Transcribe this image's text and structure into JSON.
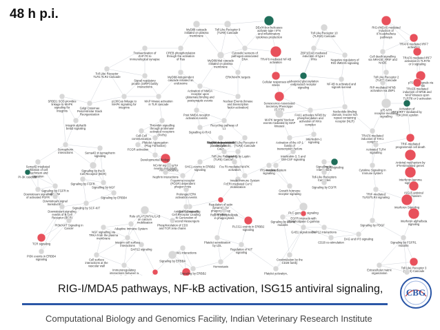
{
  "title": "48 h p.i.",
  "caption": "RIG-I/MDA5 pathways, NF-kB activation, ISG15 antiviral signaling,",
  "footer": "Computational Biology and Genomics Facility, Indian Veterinary Research Institute",
  "logo_text": "CBG",
  "colors": {
    "up": "#e8515c",
    "down": "#1f6e5a",
    "neutral": "#d8d8d8",
    "accent_text": "#d9343c",
    "rule": "#2a56a6"
  },
  "nodes": [
    {
      "label": "MyD88 cascade initiated on plasma membrane",
      "color": "#d8d8d8",
      "tc": "#333"
    },
    {
      "label": "Toll Like Receptor 9 (TLR9) Cascade",
      "color": "#d8d8d8",
      "tc": "#333"
    },
    {
      "label": "DEx/H-box helicases activate type I IFN and inflammatory cytokines production",
      "color": "#1f6e5a",
      "tc": "#333"
    },
    {
      "label": "Toll Like Receptor 10 (TLR10) Cascade",
      "color": "#d8d8d8",
      "tc": "#333"
    },
    {
      "label": "RIG-I/MDA5 mediated induction of IFN-alpha/beta pathways",
      "color": "#e8515c",
      "tc": "#d9343c"
    },
    {
      "label": "TRAF6 mediated IRF7 activation",
      "color": "#e8515c",
      "tc": "#d9343c"
    },
    {
      "label": "Transactivation of ZAP-70 to immunological synapse",
      "color": "#d8d8d8",
      "tc": "#333"
    },
    {
      "label": "CREB phosphorylation through the activation of Ras",
      "color": "#d8d8d8",
      "tc": "#333"
    },
    {
      "label": "MyD88:Mal cascade initiated on plasma membrane",
      "color": "#d8d8d8",
      "tc": "#333"
    },
    {
      "label": "Cytosolic sensors of pathogen-associated DNA",
      "color": "#d8d8d8",
      "tc": "#333"
    },
    {
      "label": "TRAF6 mediated NF-kB activation",
      "color": "#e8515c",
      "tc": "#333"
    },
    {
      "label": "ZBP1(DAI) mediated induction of type I IFNs",
      "color": "#d8d8d8",
      "tc": "#333"
    },
    {
      "label": "Negative regulators of RIG-I/MDA5 signaling",
      "color": "#d8d8d8",
      "tc": "#333"
    },
    {
      "label": "Cell death signalling via NRAGE, NRIF and NADE",
      "color": "#d8d8d8",
      "tc": "#333"
    },
    {
      "label": "TRAF6 mediated IRF7 activation in TLR7/8 or 9 signaling",
      "color": "#e8515c",
      "tc": "#d9343c"
    },
    {
      "label": "Toll Like Receptor 2 (TLR2) Cascade",
      "color": "#d8d8d8",
      "tc": "#333"
    },
    {
      "label": "p75NTR signals via NF-kB",
      "color": "#e8515c",
      "tc": "#d9343c"
    },
    {
      "label": "Toll Like Receptor TLR1:TLR2 Cascade",
      "color": "#d8d8d8",
      "tc": "#333"
    },
    {
      "label": "Signal regulatory protein (SIRP) family interactions",
      "color": "#d8d8d8",
      "tc": "#333"
    },
    {
      "label": "MyD88-independent cascade initiated on endosome",
      "color": "#d8d8d8",
      "tc": "#333"
    },
    {
      "label": "ERK/MAPK targets",
      "color": "#d8d8d8",
      "tc": "#333"
    },
    {
      "label": "Cellular responses to stress",
      "color": "#e8515c",
      "tc": "#333"
    },
    {
      "label": "Advanced glycosylation endproduct receptor signaling",
      "color": "#1f6e5a",
      "tc": "#333"
    },
    {
      "label": "NF-kB is activated and signals survival",
      "color": "#d8d8d8",
      "tc": "#333"
    },
    {
      "label": "RIP-mediated NFkB activation via ZBP1",
      "color": "#d8d8d8",
      "tc": "#333"
    },
    {
      "label": "TRAF6 mediated induction of NFkB and MAP kinases upon TLR7/8 or 9 activation",
      "color": "#e8515c",
      "tc": "#d9343c"
    },
    {
      "label": "SRBD1 SOS provides linkage to MAPK signaling for Integrins",
      "color": "#d8d8d8",
      "tc": "#333"
    },
    {
      "label": "Golgi Cisternae Pericentriolar Stack Reorganization",
      "color": "#d8d8d8",
      "tc": "#333"
    },
    {
      "label": "p130Cas linkage to MAPK signaling for integrins",
      "color": "#d8d8d8",
      "tc": "#333"
    },
    {
      "label": "MAP kinase activation in TLR cascade",
      "color": "#d8d8d8",
      "tc": "#333"
    },
    {
      "label": "Activation of NMDA receptor upon glutamate binding and postsynaptic events",
      "color": "#d8d8d8",
      "tc": "#333"
    },
    {
      "label": "Post NMDA receptor activation events",
      "color": "#d8d8d8",
      "tc": "#333"
    },
    {
      "label": "Nuclear Events (kinase and transcription factor activation)",
      "color": "#d8d8d8",
      "tc": "#333"
    },
    {
      "label": "Senescence-Associated Secretory Phenotype (SASP)",
      "color": "#e8515c",
      "tc": "#333"
    },
    {
      "label": "FAK1 activates NFkB by phosphorylation and activation of IKKs complex",
      "color": "#d8d8d8",
      "tc": "#333"
    },
    {
      "label": "Nucleotide-binding domain, leucine rich repeat containing receptor (NLR) signaling pathways",
      "color": "#d8d8d8",
      "tc": "#333"
    },
    {
      "label": "p75 NTR receptor-mediated signalling",
      "color": "#d8d8d8",
      "tc": "#333"
    },
    {
      "label": "Activation of IRF3/IRF7 mediated by TBK1/IKK epsilon",
      "color": "#1f6e5a",
      "tc": "#333"
    },
    {
      "label": "TRAF6 mediated induction of TAK1 complex",
      "color": "#d8d8d8",
      "tc": "#333"
    },
    {
      "label": "Integrin alphaIIb beta3 signaling",
      "color": "#d8d8d8",
      "tc": "#333"
    },
    {
      "label": "Thrombin signalling through proteinase activated receptors (PARs)",
      "color": "#d8d8d8",
      "tc": "#333"
    },
    {
      "label": "Signalling to RAS",
      "color": "#d8d8d8",
      "tc": "#333"
    },
    {
      "label": "Recycling pathway of L1",
      "color": "#d8d8d8",
      "tc": "#333"
    },
    {
      "label": "MAPK targets/ Nuclear events mediated by MAP kinases",
      "color": "#d8d8d8",
      "tc": "#333"
    },
    {
      "label": "Toll Like Receptor 4 (TLR4) Cascade",
      "color": "#d8d8d8",
      "tc": "#333"
    },
    {
      "label": "Activation of the AP-1 family of transcription factors",
      "color": "#d8d8d8",
      "tc": "#333"
    },
    {
      "label": "Interleukin-1 signaling",
      "color": "#d8d8d8",
      "tc": "#333"
    },
    {
      "label": "Activated TLR4 signalling",
      "color": "#d8d8d8",
      "tc": "#333"
    },
    {
      "label": "TRIF-mediated programmed cell death",
      "color": "#e8515c",
      "tc": "#d9343c"
    },
    {
      "label": "Cell-Cell communication",
      "color": "#d8d8d8",
      "tc": "#333"
    },
    {
      "label": "Platelet Aggregation (Plug Formation)",
      "color": "#d8d8d8",
      "tc": "#333"
    },
    {
      "label": "NCAM signaling for neurite out-growth",
      "color": "#e8515c",
      "tc": "#333"
    },
    {
      "label": "Toll Like Receptor 5 (TLR5) Cascade",
      "color": "#d8d8d8",
      "tc": "#333"
    },
    {
      "label": "Fcε RI-mediated MAPK activation",
      "color": "#d8d8d8",
      "tc": "#333"
    },
    {
      "label": "Interleukin-3, 5 and GM-CSF signaling",
      "color": "#d8d8d8",
      "tc": "#333"
    },
    {
      "label": "IRS-mediated signalling",
      "color": "#d8d8d8",
      "tc": "#333"
    },
    {
      "label": "Signalling by Interleukins",
      "color": "#d8d8d8",
      "tc": "#333"
    },
    {
      "label": "TCR signaling",
      "color": "#1f6e5a",
      "tc": "#333"
    },
    {
      "label": "Cytokine Signaling in Immune system",
      "color": "#d8d8d8",
      "tc": "#333"
    },
    {
      "label": "Antiviral mechanism by IFN-stimulated genes",
      "color": "#e8515c",
      "tc": "#d9343c"
    },
    {
      "label": "Interferon gamma signaling",
      "color": "#e8515c",
      "tc": "#d9343c"
    },
    {
      "label": "ISG15 antiviral mechanism",
      "color": "#e8515c",
      "tc": "#d9343c"
    },
    {
      "label": "Interferon Signaling",
      "color": "#e8515c",
      "tc": "#d9343c"
    },
    {
      "label": "Interferon alpha/beta signaling",
      "color": "#e8515c",
      "tc": "#d9343c"
    },
    {
      "label": "Semaphorin interactions",
      "color": "#d8d8d8",
      "tc": "#333"
    },
    {
      "label": "Sema4D in semaphorin signaling",
      "color": "#d8d8d8",
      "tc": "#333"
    },
    {
      "label": "Sema4D mediated inhibition of cell attachment and migration",
      "color": "#d8d8d8",
      "tc": "#333"
    },
    {
      "label": "FCGR activation",
      "color": "#d8d8d8",
      "tc": "#333"
    },
    {
      "label": "Developmental Biology",
      "color": "#d8d8d8",
      "tc": "#333"
    },
    {
      "label": "Axon guidance",
      "color": "#d8d8d8",
      "tc": "#333"
    },
    {
      "label": "SHC1 events in ERBB2 signaling",
      "color": "#d8d8d8",
      "tc": "#333"
    },
    {
      "label": "Signaling by Leptin",
      "color": "#d8d8d8",
      "tc": "#333"
    },
    {
      "label": "Immune System",
      "color": "#d8d8d8",
      "tc": "#333"
    },
    {
      "label": "Toll-Like Receptors Cascades",
      "color": "#d8d8d8",
      "tc": "#333"
    },
    {
      "label": "PI-3K cascade",
      "color": "#1f6e5a",
      "tc": "#333"
    },
    {
      "label": "Signaling by the B Cell Receptor (BCR)",
      "color": "#d8d8d8",
      "tc": "#333"
    },
    {
      "label": "Signaling by FGFR",
      "color": "#d8d8d8",
      "tc": "#333"
    },
    {
      "label": "Signalling by NGF",
      "color": "#d8d8d8",
      "tc": "#333"
    },
    {
      "label": "FcERI mediated Ca+2 mobilization",
      "color": "#d8d8d8",
      "tc": "#333"
    },
    {
      "label": "Signaling by ERBB4",
      "color": "#d8d8d8",
      "tc": "#333"
    },
    {
      "label": "Nephrin interactions",
      "color": "#d8d8d8",
      "tc": "#333"
    },
    {
      "label": "Fcgamma receptor (FCGR) dependent phagocytosis",
      "color": "#d8d8d8",
      "tc": "#333"
    },
    {
      "label": "Innate Immune System",
      "color": "#d8d8d8",
      "tc": "#333"
    },
    {
      "label": "Growth hormone receptor signaling",
      "color": "#d8d8d8",
      "tc": "#333"
    },
    {
      "label": "Signaling by EGFR",
      "color": "#d8d8d8",
      "tc": "#333"
    },
    {
      "label": "TRIF-mediated TLR3/TLR4 signaling",
      "color": "#d8d8d8",
      "tc": "#333"
    },
    {
      "label": "Downstream signaling of activated FGFR",
      "color": "#d8d8d8",
      "tc": "#333"
    },
    {
      "label": "Signaling by SCF-KIT",
      "color": "#d8d8d8",
      "tc": "#333"
    },
    {
      "label": "Prolonged ERK activation events",
      "color": "#d8d8d8",
      "tc": "#333"
    },
    {
      "label": "Regulation of actin dynamics for phagocytic cup formation",
      "color": "#e8515c",
      "tc": "#333"
    },
    {
      "label": "DAP12 signaling",
      "color": "#d8d8d8",
      "tc": "#333"
    },
    {
      "label": "PLC-gamma1 signaling",
      "color": "#d8d8d8",
      "tc": "#333"
    },
    {
      "label": "Signaling by FGFR in disease",
      "color": "#d8d8d8",
      "tc": "#333"
    },
    {
      "label": "Downstream signal transduction",
      "color": "#d8d8d8",
      "tc": "#333"
    },
    {
      "label": "Antigen Activates B Cell Receptor Leading to Generation of Second Messengers",
      "color": "#d8d8d8",
      "tc": "#333"
    },
    {
      "label": "Role of phospholipids in phagocytosis",
      "color": "#d8d8d8",
      "tc": "#333"
    },
    {
      "label": "EGFR interacts with phospholipase C-gamma",
      "color": "#e8515c",
      "tc": "#333"
    },
    {
      "label": "Role of LAT2/NTAL/LAB on calcium mobilization",
      "color": "#d8d8d8",
      "tc": "#333"
    },
    {
      "label": "Downstream signaling events of B Cell Receptor (BCR)",
      "color": "#d8d8d8",
      "tc": "#333"
    },
    {
      "label": "PLCG1 events in ERBB2 signaling",
      "color": "#e8515c",
      "tc": "#333"
    },
    {
      "label": "Signaling by FGFR mutants",
      "color": "#d8d8d8",
      "tc": "#333"
    },
    {
      "label": "Signaling by PDGF",
      "color": "#d8d8d8",
      "tc": "#333"
    },
    {
      "label": "PI3K/AKT Signaling in Cancer",
      "color": "#d8d8d8",
      "tc": "#333"
    },
    {
      "label": "Adaptive Immune System",
      "color": "#d8d8d8",
      "tc": "#333"
    },
    {
      "label": "Phosphorylation of CD3 and TCR zeta chains",
      "color": "#d8d8d8",
      "tc": "#333"
    },
    {
      "label": "GAB1 signalosome",
      "color": "#d8d8d8",
      "tc": "#333"
    },
    {
      "label": "DAP12 interactions",
      "color": "#d8d8d8",
      "tc": "#333"
    },
    {
      "label": "DAG and IP3 signaling",
      "color": "#d8d8d8",
      "tc": "#333"
    },
    {
      "label": "Signaling by FGFR1 mutants",
      "color": "#d8d8d8",
      "tc": "#333"
    },
    {
      "label": "Toll Like Receptor 3 (TLR3) Cascade",
      "color": "#e8515c",
      "tc": "#d9343c"
    },
    {
      "label": "TCR signaling",
      "color": "#e8515c",
      "tc": "#d9343c"
    },
    {
      "label": "PI3K events in ERBB4 signaling",
      "color": "#d8d8d8",
      "tc": "#333"
    },
    {
      "label": "NGF signalling via TRKA from the plasma membrane",
      "color": "#d8d8d8",
      "tc": "#333"
    },
    {
      "label": "DAP12 signaling",
      "color": "#d8d8d8",
      "tc": "#333"
    },
    {
      "label": "PECAM1 interactions",
      "color": "#d8d8d8",
      "tc": "#333"
    },
    {
      "label": "Platelet sensitization by LDL",
      "color": "#d8d8d8",
      "tc": "#333"
    },
    {
      "label": "Regulation of KIT signaling",
      "color": "#d8d8d8",
      "tc": "#333"
    },
    {
      "label": "Costimulation by the CD28 family",
      "color": "#d8d8d8",
      "tc": "#333"
    },
    {
      "label": "CD28 co-stimulation",
      "color": "#d8d8d8",
      "tc": "#333"
    },
    {
      "label": "Downstream TCR signaling",
      "color": "#d8d8d8",
      "tc": "#333"
    },
    {
      "label": "Generation of second messenger molecules",
      "color": "#e8515c",
      "tc": "#d9343c"
    },
    {
      "label": "Cell surface interactions at the vascular wall",
      "color": "#d8d8d8",
      "tc": "#333"
    },
    {
      "label": "Signaling by ERBB2",
      "color": "#d8d8d8",
      "tc": "#333"
    },
    {
      "label": "Hemostasis",
      "color": "#d8d8d8",
      "tc": "#333"
    },
    {
      "label": "Immunoregulatory interactions between a Lymphoid and a non-Lymphoid cell",
      "color": "#d8d8d8",
      "tc": "#333"
    },
    {
      "label": "PD-1 signaling",
      "color": "#d8d8d8",
      "tc": "#333"
    },
    {
      "label": "Platelet activation, signaling and aggregation",
      "color": "#d8d8d8",
      "tc": "#333"
    },
    {
      "label": "Extracellular matrix organization",
      "color": "#d8d8d8",
      "tc": "#333"
    },
    {
      "label": "Integrin cell surface interactions",
      "color": "#d8d8d8",
      "tc": "#333"
    },
    {
      "label": "TRAF6 mediated induction of NFkB and MAP kinases upon TLR7/8 or 9 activation",
      "color": "#e8515c",
      "tc": "#d9343c"
    },
    {
      "label": "Signaling by ERBB4",
      "color": "#d8d8d8",
      "tc": "#333"
    },
    {
      "label": "Response to elevated platelet cytosolic Ca2+",
      "color": "#d8d8d8",
      "tc": "#333"
    },
    {
      "label": "Platelet degranulation",
      "color": "#d8d8d8",
      "tc": "#333"
    },
    {
      "label": "MyD88-independent cascade",
      "color": "#d8d8d8",
      "tc": "#333"
    }
  ]
}
